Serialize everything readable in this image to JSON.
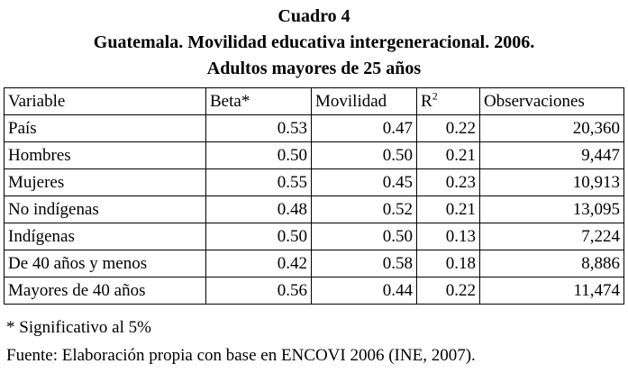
{
  "title": {
    "line1": "Cuadro 4",
    "line2": "Guatemala.  Movilidad educativa intergeneracional. 2006.",
    "line3": "Adultos mayores de 25 años"
  },
  "table": {
    "headers": {
      "variable": "Variable",
      "beta": "Beta*",
      "movilidad": "Movilidad",
      "r2_base": "R",
      "r2_sup": "2",
      "observaciones": "Observaciones"
    },
    "rows": [
      {
        "variable": "País",
        "beta": "0.53",
        "movilidad": "0.47",
        "r2": "0.22",
        "observaciones": "20,360"
      },
      {
        "variable": "Hombres",
        "beta": "0.50",
        "movilidad": "0.50",
        "r2": "0.21",
        "observaciones": "9,447"
      },
      {
        "variable": "Mujeres",
        "beta": "0.55",
        "movilidad": "0.45",
        "r2": "0.23",
        "observaciones": "10,913"
      },
      {
        "variable": "No indígenas",
        "beta": "0.48",
        "movilidad": "0.52",
        "r2": "0.21",
        "observaciones": "13,095"
      },
      {
        "variable": "Indígenas",
        "beta": "0.50",
        "movilidad": "0.50",
        "r2": "0.13",
        "observaciones": "7,224"
      },
      {
        "variable": "De 40 años y menos",
        "beta": "0.42",
        "movilidad": "0.58",
        "r2": "0.18",
        "observaciones": "8,886"
      },
      {
        "variable": "Mayores de 40 años",
        "beta": "0.56",
        "movilidad": "0.44",
        "r2": "0.22",
        "observaciones": "11,474"
      }
    ]
  },
  "footnotes": {
    "significance": "* Significativo al 5%",
    "source": "Fuente: Elaboración propia con base en ENCOVI 2006 (INE, 2007)."
  }
}
